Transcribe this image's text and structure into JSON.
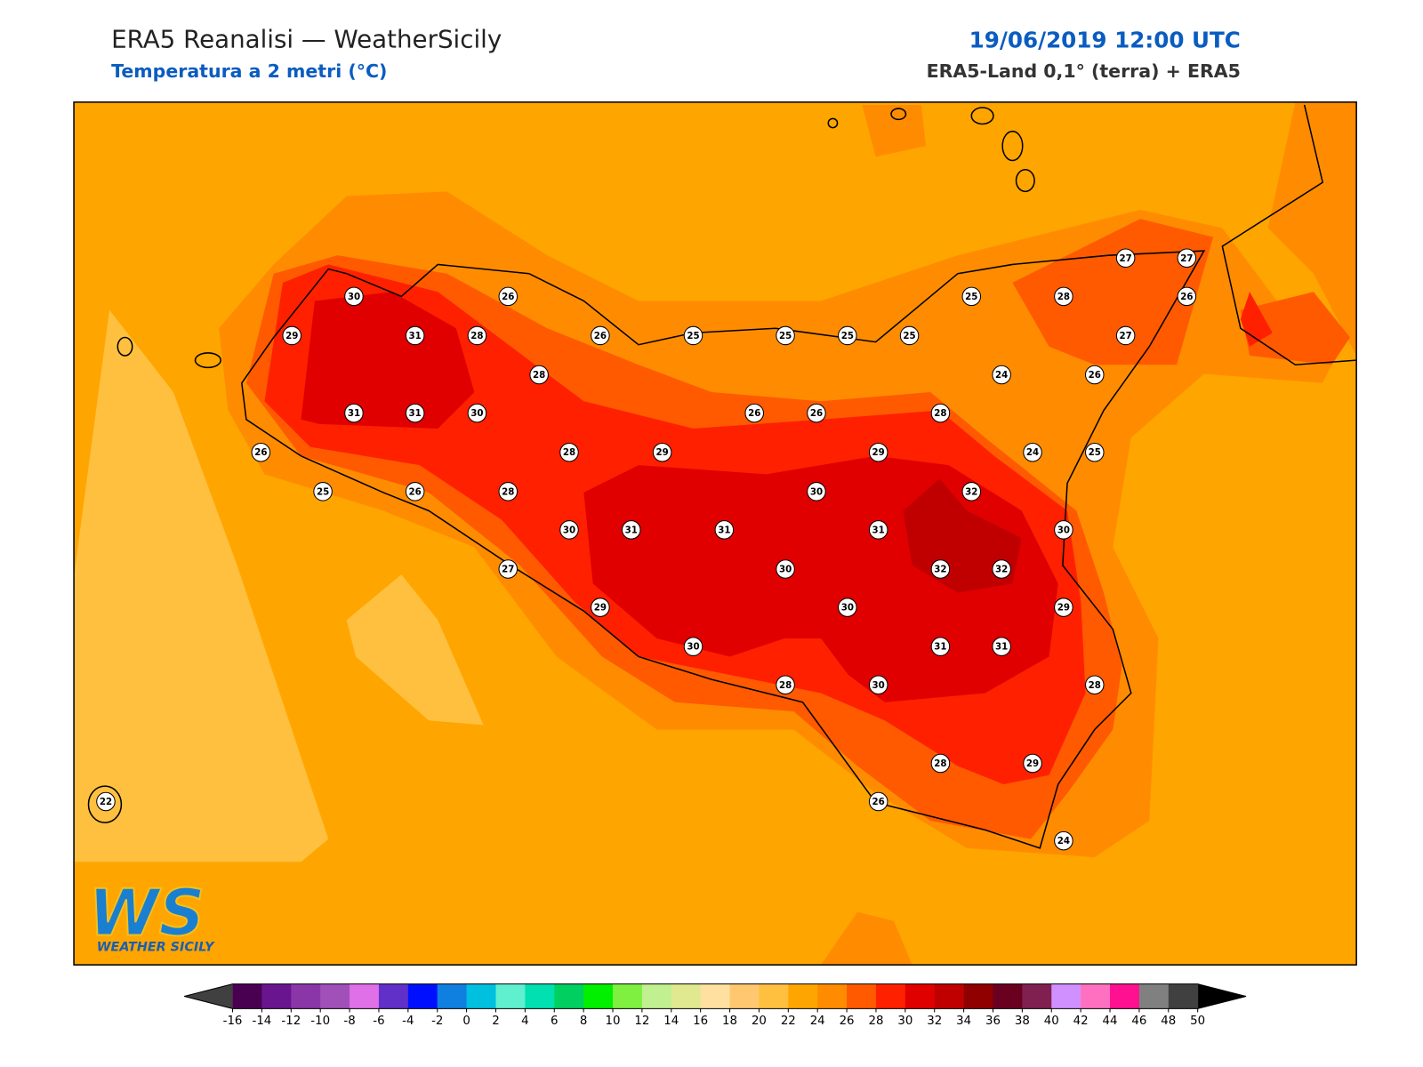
{
  "header": {
    "title": "ERA5 Reanalisi — WeatherSicily",
    "subtitle": "Temperatura a 2 metri (°C)",
    "date": "19/06/2019 12:00 UTC",
    "source": "ERA5-Land 0,1° (terra) + ERA5"
  },
  "stations": [
    30,
    26,
    29,
    31,
    28,
    26,
    25,
    25,
    25,
    25,
    25,
    28,
    27,
    27,
    26,
    27,
    28,
    24,
    26,
    31,
    31,
    30,
    26,
    26,
    28,
    26,
    28,
    29,
    29,
    24,
    25,
    25,
    26,
    28,
    30,
    32,
    30,
    31,
    31,
    31,
    30,
    27,
    30,
    32,
    32,
    29,
    30,
    29,
    30,
    31,
    31,
    28,
    30,
    28,
    28,
    29,
    26,
    24,
    22
  ],
  "colorbar": {
    "ticks": [
      -16,
      -14,
      -12,
      -10,
      -8,
      -6,
      -4,
      -2,
      0,
      2,
      4,
      6,
      8,
      10,
      12,
      14,
      16,
      18,
      20,
      22,
      24,
      26,
      28,
      30,
      32,
      34,
      36,
      38,
      40,
      42,
      44,
      46,
      48,
      50
    ],
    "colors": [
      "#4a0050",
      "#6a1590",
      "#8a35a8",
      "#a050b8",
      "#e070e8",
      "#6030c8",
      "#0010ff",
      "#1080e0",
      "#00c0e0",
      "#60f0d0",
      "#00e0b0",
      "#00d060",
      "#00f000",
      "#80f040",
      "#c0f090",
      "#e0e890",
      "#ffe0a0",
      "#ffc870",
      "#ffc040",
      "#ffa500",
      "#ff8c00",
      "#ff5a00",
      "#ff2000",
      "#e00000",
      "#c00000",
      "#900000",
      "#6a0020",
      "#802050",
      "#d090ff",
      "#ff70c0",
      "#ff1090",
      "#808080",
      "#404040"
    ],
    "under": "#404040",
    "over": "#000000"
  },
  "logo": {
    "mark": "WS",
    "name": "WEATHER SICILY"
  }
}
